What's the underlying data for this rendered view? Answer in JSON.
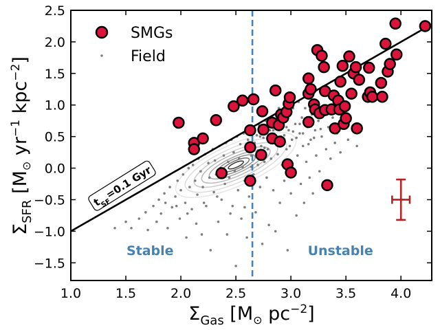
{
  "chart_data": {
    "type": "scatter",
    "xlabel": "Σ_Gas [M⊙ pc⁻²]",
    "ylabel": "Σ_SFR [M⊙ yr⁻¹ kpc⁻²]",
    "xlabel_parts": {
      "sym": "Σ",
      "sub": "Gas",
      "unit_open": " [M",
      "odot": "⊙",
      "unit_mid": " pc",
      "exp": "−2",
      "close": "]"
    },
    "ylabel_parts": {
      "sym": "Σ",
      "sub": "SFR",
      "unit_open": " [M",
      "odot": "⊙",
      "unit_mid": " yr",
      "exp1": "−1",
      "unit_mid2": " kpc",
      "exp2": "−2",
      "close": "]"
    },
    "xlim": [
      1.0,
      4.28
    ],
    "ylim": [
      -1.78,
      2.5
    ],
    "xticks": [
      1.0,
      1.5,
      2.0,
      2.5,
      3.0,
      3.5,
      4.0
    ],
    "xtick_labels": [
      "1.0",
      "1.5",
      "2.0",
      "2.5",
      "3.0",
      "3.5",
      "4.0"
    ],
    "yticks": [
      -1.5,
      -1.0,
      -0.5,
      0.0,
      0.5,
      1.0,
      1.5,
      2.0,
      2.5
    ],
    "ytick_labels": [
      "−1.5",
      "−1.0",
      "−0.5",
      "0.0",
      "0.5",
      "1.0",
      "1.5",
      "2.0",
      "2.5"
    ],
    "legend": {
      "location": "top-left",
      "entries": [
        {
          "label": "SMGs",
          "marker": "circle",
          "color": "#dc143c",
          "edge": "#000000"
        },
        {
          "label": "Field",
          "marker": "dot",
          "color": "#808080"
        }
      ]
    },
    "colors": {
      "smg_fill": "#dc143c",
      "smg_edge": "#000000",
      "field": "#7f7f7f",
      "threshold": "#4682b4",
      "errorbar": "#b22222",
      "contour": "#9a9a9a"
    },
    "threshold_line": {
      "x": 2.65,
      "style": "dashed"
    },
    "regions": [
      {
        "label": "Stable",
        "x": 1.72,
        "y": -1.3
      },
      {
        "label": "Unstable",
        "x": 3.45,
        "y": -1.3
      }
    ],
    "tsf_line": {
      "label_main": "t",
      "label_sub": "SF",
      "label_rest": "=0.1 Gyr",
      "x": [
        1.0,
        4.28
      ],
      "y": [
        -1.0,
        2.28
      ]
    },
    "errorbar": {
      "x": 4.0,
      "y": -0.5,
      "xerr": 0.08,
      "yerr": 0.32
    },
    "series": [
      {
        "name": "SMGs",
        "points": [
          [
            1.98,
            0.72
          ],
          [
            2.12,
            0.4
          ],
          [
            2.12,
            0.3
          ],
          [
            2.2,
            0.47
          ],
          [
            2.32,
            0.76
          ],
          [
            2.37,
            -0.08
          ],
          [
            2.48,
            0.98
          ],
          [
            2.56,
            1.07
          ],
          [
            2.63,
            0.6
          ],
          [
            2.63,
            0.33
          ],
          [
            2.63,
            -0.2
          ],
          [
            2.66,
            1.09
          ],
          [
            2.73,
            0.21
          ],
          [
            2.74,
            0.9
          ],
          [
            2.75,
            0.61
          ],
          [
            2.83,
            0.72
          ],
          [
            2.83,
            0.47
          ],
          [
            2.86,
            1.23
          ],
          [
            2.89,
            0.68
          ],
          [
            2.9,
            0.42
          ],
          [
            2.91,
            0.85
          ],
          [
            2.93,
            0.8
          ],
          [
            2.96,
            0.89
          ],
          [
            2.97,
            0.06
          ],
          [
            2.98,
            1.02
          ],
          [
            2.99,
            1.12
          ],
          [
            3.0,
            -0.07
          ],
          [
            3.16,
            1.42
          ],
          [
            3.16,
            1.18
          ],
          [
            3.16,
            0.73
          ],
          [
            3.18,
            1.25
          ],
          [
            3.21,
            1.01
          ],
          [
            3.22,
            0.93
          ],
          [
            3.24,
            1.87
          ],
          [
            3.26,
            0.87
          ],
          [
            3.28,
            1.78
          ],
          [
            3.3,
            1.6
          ],
          [
            3.31,
            0.92
          ],
          [
            3.31,
            1.22
          ],
          [
            3.33,
            -0.27
          ],
          [
            3.37,
            0.93
          ],
          [
            3.39,
            1.15
          ],
          [
            3.4,
            0.63
          ],
          [
            3.43,
            1.07
          ],
          [
            3.44,
            0.93
          ],
          [
            3.45,
            1.37
          ],
          [
            3.47,
            1.62
          ],
          [
            3.48,
            0.7
          ],
          [
            3.49,
            0.98
          ],
          [
            3.5,
            0.79
          ],
          [
            3.53,
            1.77
          ],
          [
            3.55,
            1.18
          ],
          [
            3.57,
            1.5
          ],
          [
            3.59,
            1.6
          ],
          [
            3.6,
            0.63
          ],
          [
            3.62,
            1.4
          ],
          [
            3.7,
            1.13
          ],
          [
            3.71,
            1.59
          ],
          [
            3.72,
            1.2
          ],
          [
            3.74,
            1.13
          ],
          [
            3.82,
            1.35
          ],
          [
            3.83,
            1.13
          ],
          [
            3.86,
            1.97
          ],
          [
            3.88,
            1.53
          ],
          [
            3.9,
            1.65
          ],
          [
            3.95,
            2.29
          ],
          [
            3.96,
            1.8
          ],
          [
            4.22,
            2.25
          ]
        ]
      },
      {
        "name": "Field",
        "points": [
          [
            1.4,
            -0.95
          ],
          [
            1.5,
            -0.85
          ],
          [
            1.55,
            -0.95
          ],
          [
            1.62,
            -0.8
          ],
          [
            1.68,
            -0.7
          ],
          [
            1.7,
            -0.98
          ],
          [
            1.75,
            -0.6
          ],
          [
            1.78,
            -0.85
          ],
          [
            1.8,
            -0.5
          ],
          [
            1.82,
            -0.72
          ],
          [
            1.85,
            -0.4
          ],
          [
            1.88,
            -0.95
          ],
          [
            1.9,
            -0.3
          ],
          [
            1.92,
            -0.62
          ],
          [
            1.95,
            -0.45
          ],
          [
            1.97,
            -0.2
          ],
          [
            1.99,
            -0.8
          ],
          [
            2.0,
            -0.35
          ],
          [
            2.02,
            -0.1
          ],
          [
            2.04,
            -0.55
          ],
          [
            2.05,
            -1.1
          ],
          [
            2.07,
            0.0
          ],
          [
            2.08,
            -0.3
          ],
          [
            2.1,
            -0.65
          ],
          [
            2.11,
            0.05
          ],
          [
            2.13,
            -0.2
          ],
          [
            2.15,
            -0.42
          ],
          [
            2.16,
            0.15
          ],
          [
            2.18,
            -0.05
          ],
          [
            2.19,
            -1.05
          ],
          [
            2.2,
            -0.3
          ],
          [
            2.22,
            0.22
          ],
          [
            2.23,
            -0.6
          ],
          [
            2.25,
            0.08
          ],
          [
            2.26,
            -0.15
          ],
          [
            2.27,
            -1.3
          ],
          [
            2.29,
            0.3
          ],
          [
            2.3,
            -0.38
          ],
          [
            2.31,
            0.12
          ],
          [
            2.32,
            -0.1
          ],
          [
            2.34,
            -0.85
          ],
          [
            2.35,
            0.35
          ],
          [
            2.36,
            0.0
          ],
          [
            2.37,
            -0.5
          ],
          [
            2.39,
            0.2
          ],
          [
            2.4,
            -0.25
          ],
          [
            2.41,
            0.4
          ],
          [
            2.42,
            -1.05
          ],
          [
            2.43,
            0.1
          ],
          [
            2.44,
            -0.15
          ],
          [
            2.46,
            0.45
          ],
          [
            2.47,
            -0.6
          ],
          [
            2.48,
            0.25
          ],
          [
            2.49,
            -0.05
          ],
          [
            2.5,
            -1.55
          ],
          [
            2.51,
            0.5
          ],
          [
            2.52,
            -0.35
          ],
          [
            2.53,
            0.15
          ],
          [
            2.54,
            0.38
          ],
          [
            2.55,
            -0.8
          ],
          [
            2.56,
            0.02
          ],
          [
            2.57,
            0.55
          ],
          [
            2.58,
            -0.2
          ],
          [
            2.59,
            0.3
          ],
          [
            2.6,
            -1.1
          ],
          [
            2.61,
            0.45
          ],
          [
            2.62,
            -0.45
          ],
          [
            2.64,
            0.2
          ],
          [
            2.65,
            0.6
          ],
          [
            2.66,
            -0.1
          ],
          [
            2.67,
            0.4
          ],
          [
            2.68,
            -0.7
          ],
          [
            2.69,
            0.52
          ],
          [
            2.7,
            0.05
          ],
          [
            2.71,
            0.68
          ],
          [
            2.72,
            -0.3
          ],
          [
            2.73,
            0.35
          ],
          [
            2.74,
            -1.2
          ],
          [
            2.75,
            0.48
          ],
          [
            2.76,
            0.1
          ],
          [
            2.77,
            0.75
          ],
          [
            2.78,
            -0.15
          ],
          [
            2.79,
            0.3
          ],
          [
            2.8,
            -0.9
          ],
          [
            2.81,
            0.6
          ],
          [
            2.82,
            0.15
          ],
          [
            2.83,
            0.82
          ],
          [
            2.84,
            -0.35
          ],
          [
            2.85,
            0.4
          ],
          [
            2.86,
            -1.0
          ],
          [
            2.87,
            0.68
          ],
          [
            2.88,
            0.22
          ],
          [
            2.89,
            0.95
          ],
          [
            2.9,
            -0.55
          ],
          [
            2.91,
            0.5
          ],
          [
            2.92,
            0.05
          ],
          [
            2.93,
            0.75
          ],
          [
            2.94,
            -0.2
          ],
          [
            2.95,
            1.0
          ],
          [
            2.96,
            0.3
          ],
          [
            2.97,
            -1.3
          ],
          [
            2.98,
            0.6
          ],
          [
            2.99,
            0.85
          ],
          [
            3.0,
            -0.4
          ],
          [
            3.01,
            0.45
          ],
          [
            3.02,
            0.95
          ],
          [
            3.03,
            -0.1
          ],
          [
            3.04,
            0.7
          ],
          [
            3.05,
            -0.75
          ],
          [
            3.06,
            0.2
          ],
          [
            3.07,
            1.05
          ],
          [
            3.08,
            0.55
          ],
          [
            3.09,
            -0.25
          ],
          [
            3.1,
            0.8
          ],
          [
            3.11,
            0.35
          ],
          [
            3.12,
            -0.55
          ],
          [
            3.13,
            0.95
          ],
          [
            3.14,
            0.1
          ],
          [
            3.15,
            0.65
          ],
          [
            3.17,
            -0.15
          ],
          [
            3.18,
            0.45
          ],
          [
            3.19,
            0.85
          ],
          [
            3.2,
            -0.4
          ],
          [
            3.22,
            0.6
          ],
          [
            3.23,
            0.2
          ],
          [
            3.25,
            0.75
          ],
          [
            3.26,
            -0.05
          ],
          [
            3.28,
            0.5
          ],
          [
            3.3,
            0.9
          ],
          [
            3.32,
            0.3
          ],
          [
            3.34,
            0.65
          ],
          [
            3.36,
            0.15
          ],
          [
            3.38,
            0.8
          ],
          [
            3.4,
            0.4
          ],
          [
            3.42,
            0.55
          ],
          [
            3.45,
            0.25
          ],
          [
            3.48,
            0.7
          ],
          [
            3.52,
            0.45
          ],
          [
            3.56,
            0.6
          ],
          [
            3.6,
            0.35
          ],
          [
            2.58,
            -0.62
          ],
          [
            2.45,
            -0.72
          ],
          [
            2.33,
            -0.45
          ],
          [
            2.21,
            -0.55
          ],
          [
            2.14,
            -0.88
          ],
          [
            2.06,
            -0.72
          ],
          [
            1.96,
            -0.6
          ],
          [
            1.86,
            -0.55
          ],
          [
            2.68,
            0.18
          ],
          [
            2.72,
            0.5
          ],
          [
            2.78,
            0.55
          ],
          [
            2.84,
            0.6
          ],
          [
            2.9,
            0.72
          ],
          [
            2.96,
            0.65
          ],
          [
            3.02,
            0.58
          ],
          [
            3.08,
            0.7
          ],
          [
            2.64,
            0.02
          ],
          [
            2.7,
            0.28
          ],
          [
            2.76,
            0.32
          ],
          [
            2.82,
            0.42
          ],
          [
            2.88,
            0.45
          ],
          [
            2.94,
            0.52
          ],
          [
            2.99,
            0.35
          ],
          [
            3.05,
            0.48
          ],
          [
            3.11,
            0.55
          ],
          [
            3.16,
            0.38
          ],
          [
            3.21,
            0.48
          ],
          [
            3.27,
            0.62
          ]
        ]
      }
    ]
  }
}
